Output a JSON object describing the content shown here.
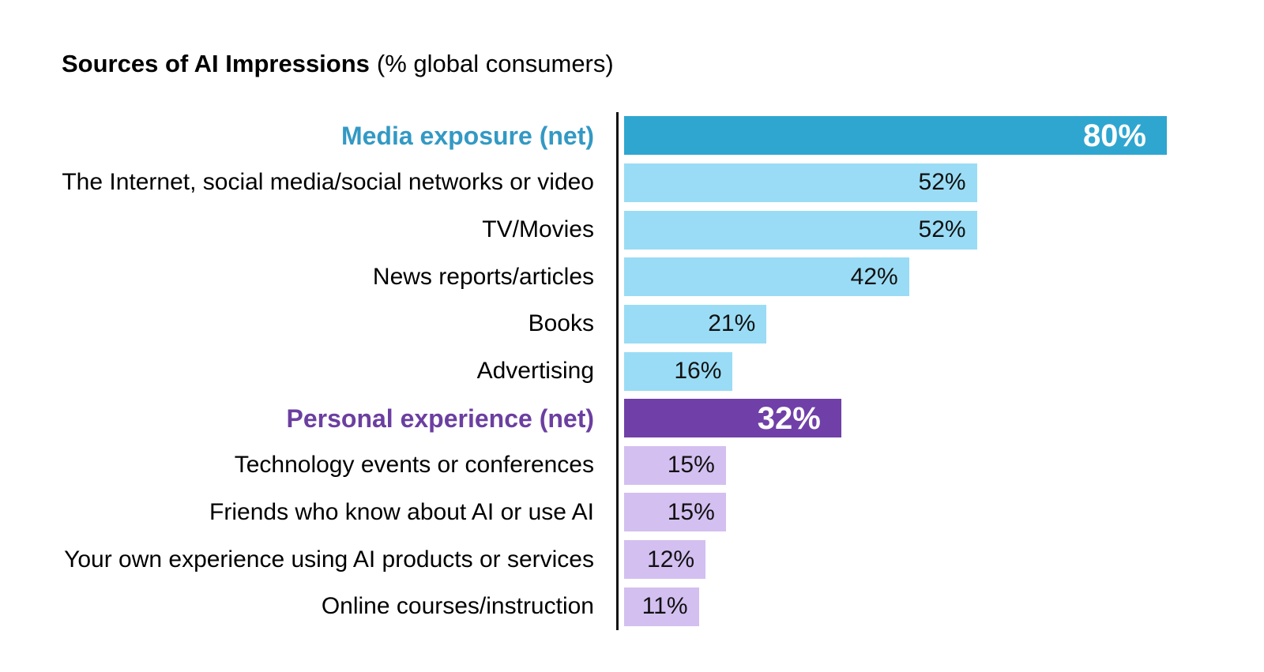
{
  "title": {
    "main": "Sources of AI Impressions",
    "suffix": "(% global consumers)"
  },
  "chart_data": {
    "type": "bar",
    "orientation": "horizontal",
    "title": "Sources of AI Impressions (% global consumers)",
    "unit": "%",
    "xlim": [
      0,
      80
    ],
    "grid": false,
    "categories": [
      "Media exposure (net)",
      "The Internet, social media/social networks or video",
      "TV/Movies",
      "News reports/articles",
      "Books",
      "Advertising",
      "Personal experience (net)",
      "Technology events or conferences",
      "Friends who know about AI or use AI",
      "Your own experience using AI products or services",
      "Online courses/instruction"
    ],
    "values": [
      80,
      52,
      52,
      42,
      21,
      16,
      32,
      15,
      15,
      12,
      11
    ],
    "rows": [
      {
        "label": "Media exposure (net)",
        "value": 80,
        "display": "80%",
        "group": "media",
        "net": true
      },
      {
        "label": "The Internet, social media/social networks or video",
        "value": 52,
        "display": "52%",
        "group": "media",
        "net": false
      },
      {
        "label": "TV/Movies",
        "value": 52,
        "display": "52%",
        "group": "media",
        "net": false
      },
      {
        "label": "News reports/articles",
        "value": 42,
        "display": "42%",
        "group": "media",
        "net": false
      },
      {
        "label": "Books",
        "value": 21,
        "display": "21%",
        "group": "media",
        "net": false
      },
      {
        "label": "Advertising",
        "value": 16,
        "display": "16%",
        "group": "media",
        "net": false
      },
      {
        "label": "Personal experience (net)",
        "value": 32,
        "display": "32%",
        "group": "personal",
        "net": true
      },
      {
        "label": "Technology events or conferences",
        "value": 15,
        "display": "15%",
        "group": "personal",
        "net": false
      },
      {
        "label": "Friends who know about AI or use AI",
        "value": 15,
        "display": "15%",
        "group": "personal",
        "net": false
      },
      {
        "label": "Your own experience using AI products or services",
        "value": 12,
        "display": "12%",
        "group": "personal",
        "net": false
      },
      {
        "label": "Online courses/instruction",
        "value": 11,
        "display": "11%",
        "group": "personal",
        "net": false
      }
    ],
    "colors": {
      "media_net_bar": "#2fa6d0",
      "media_bar": "#9adcf5",
      "personal_net_bar": "#7040a8",
      "personal_bar": "#d3bff0",
      "media_net_label": "#3399c4",
      "personal_net_label": "#6b3fa1",
      "value_text": "#111111",
      "net_value_text": "#ffffff",
      "axis_line": "#111111"
    }
  }
}
